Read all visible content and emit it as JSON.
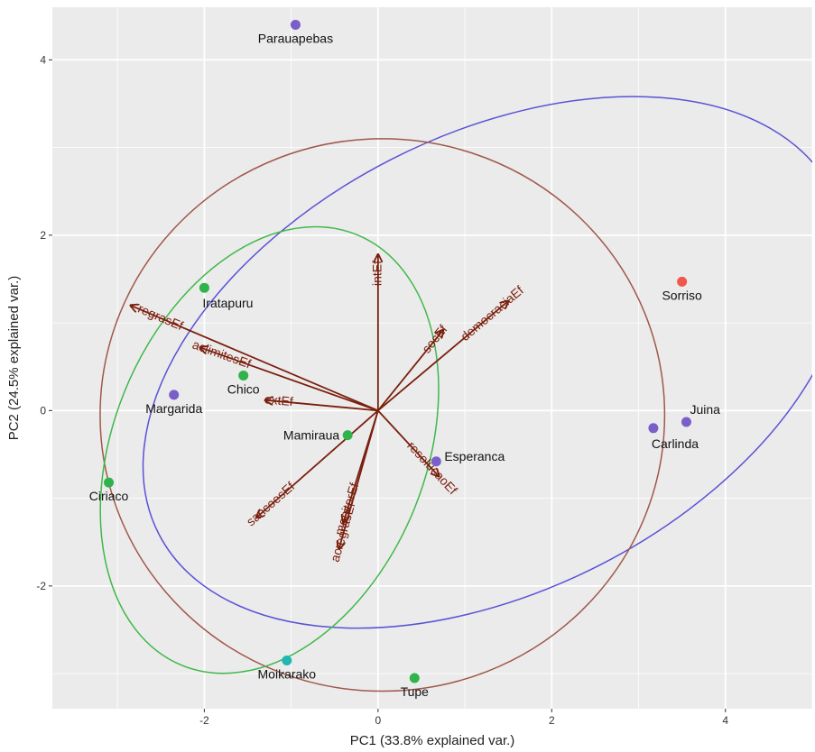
{
  "chart_data": {
    "type": "scatter",
    "subtype": "pca-biplot",
    "title": "",
    "xlabel": "PC1 (33.8% explained var.)",
    "ylabel": "PC2 (24.5% explained var.)",
    "xlim": [
      -3.75,
      5.0
    ],
    "ylim": [
      -3.4,
      4.6
    ],
    "xticks": [
      -2,
      0,
      2,
      4
    ],
    "yticks": [
      -2,
      0,
      2,
      4
    ],
    "xtick_labels": [
      "-2",
      "0",
      "2",
      "4"
    ],
    "ytick_labels": [
      "-2",
      "0",
      "2",
      "4"
    ],
    "grid": true,
    "legend": "none",
    "colors": {
      "panel_background": "#ebebeb",
      "grid": "#ffffff",
      "arrow": "#7a1f0d",
      "purple": "#7b5fc9",
      "green": "#2fb34a",
      "red": "#f0584a",
      "cyan": "#1fb8b0",
      "ellipse_purple": "#5a52d6",
      "ellipse_brown": "#a0584a",
      "ellipse_green": "#3fb84a"
    },
    "points": [
      {
        "label": "Parauapebas",
        "x": -0.95,
        "y": 4.4,
        "color": "purple",
        "label_side": "below"
      },
      {
        "label": "Sorriso",
        "x": 3.5,
        "y": 1.47,
        "color": "red",
        "label_side": "below"
      },
      {
        "label": "Juina",
        "x": 3.55,
        "y": -0.13,
        "color": "purple",
        "label_side": "above-right"
      },
      {
        "label": "Carlinda",
        "x": 3.17,
        "y": -0.2,
        "color": "purple",
        "label_side": "below-right"
      },
      {
        "label": "Esperanca",
        "x": 0.67,
        "y": -0.58,
        "color": "purple",
        "label_side": "right"
      },
      {
        "label": "Iratapuru",
        "x": -2.0,
        "y": 1.4,
        "color": "green",
        "label_side": "below-right"
      },
      {
        "label": "Chico",
        "x": -1.55,
        "y": 0.4,
        "color": "green",
        "label_side": "below"
      },
      {
        "label": "Margarida",
        "x": -2.35,
        "y": 0.18,
        "color": "purple",
        "label_side": "below"
      },
      {
        "label": "Mamiraua",
        "x": -0.35,
        "y": -0.28,
        "color": "green",
        "label_side": "left"
      },
      {
        "label": "Ciriaco",
        "x": -3.1,
        "y": -0.82,
        "color": "green",
        "label_side": "below"
      },
      {
        "label": "Moikarako",
        "x": -1.05,
        "y": -2.85,
        "color": "cyan",
        "label_side": "below"
      },
      {
        "label": "Tupe",
        "x": 0.42,
        "y": -3.05,
        "color": "green",
        "label_side": "below"
      }
    ],
    "loadings": [
      {
        "label": "intEf",
        "x": 0.0,
        "y": 1.78
      },
      {
        "label": "democraciaEf",
        "x": 1.5,
        "y": 1.25
      },
      {
        "label": "socEf",
        "x": 0.75,
        "y": 0.92
      },
      {
        "label": "regrasEf",
        "x": -2.85,
        "y": 1.2
      },
      {
        "label": "aclimitesEf",
        "x": -2.05,
        "y": 0.72
      },
      {
        "label": "extEf",
        "x": -1.3,
        "y": 0.12
      },
      {
        "label": "resolucaoEf",
        "x": 0.7,
        "y": -0.75
      },
      {
        "label": "monitorEf",
        "x": -0.4,
        "y": -1.28
      },
      {
        "label": "acregrasEf",
        "x": -0.45,
        "y": -1.58
      },
      {
        "label": "sancoesEf",
        "x": -1.4,
        "y": -1.22
      }
    ],
    "ellipses": [
      {
        "name": "purple",
        "cx": 1.35,
        "cy": 0.55,
        "rx": 4.35,
        "ry": 2.6,
        "angle_deg": -27
      },
      {
        "name": "brown",
        "cx": 0.05,
        "cy": -0.05,
        "rx": 3.25,
        "ry": 3.15,
        "angle_deg": 0
      },
      {
        "name": "green",
        "cx": -1.25,
        "cy": -0.45,
        "rx": 1.8,
        "ry": 2.65,
        "angle_deg": 22
      }
    ]
  }
}
